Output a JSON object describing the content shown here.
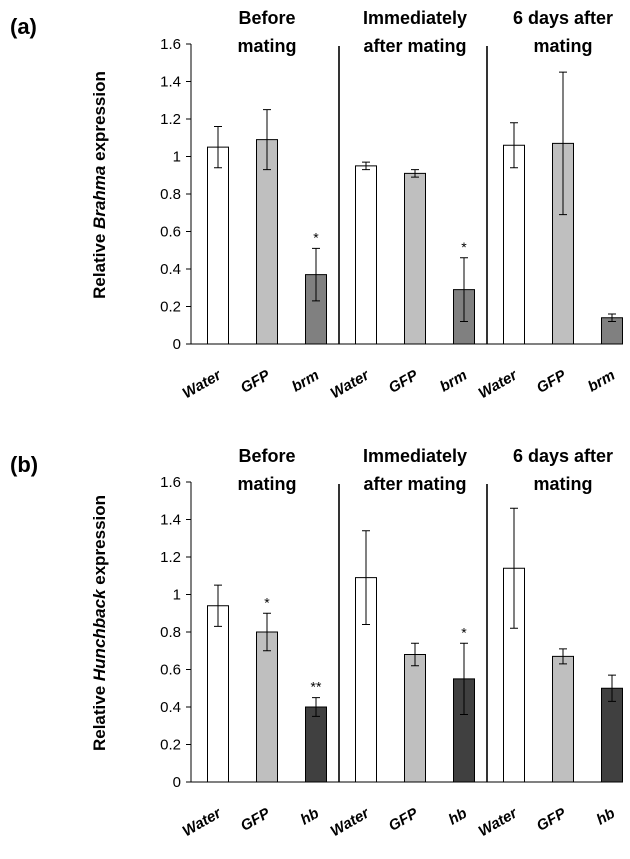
{
  "chart_data": [
    {
      "type": "bar",
      "panel_label": "(a)",
      "ylabel_pre": "Relative ",
      "ylabel_em": "Brahma",
      "ylabel_post": " expression",
      "ylim": [
        0,
        1.6
      ],
      "yticks": [
        "0",
        "0.2",
        "0.4",
        "0.6",
        "0.8",
        "1",
        "1.2",
        "1.4",
        "1.6"
      ],
      "groups": [
        {
          "label_lines": [
            "Before",
            "mating"
          ],
          "categories": [
            "Water",
            "GFP",
            "brm"
          ],
          "values": [
            1.05,
            1.09,
            0.37
          ],
          "errors": [
            0.11,
            0.16,
            0.14
          ],
          "stars": [
            "",
            "",
            "*"
          ]
        },
        {
          "label_lines": [
            "Immediately",
            "after mating"
          ],
          "categories": [
            "Water",
            "GFP",
            "brm"
          ],
          "values": [
            0.95,
            0.91,
            0.29
          ],
          "errors": [
            0.02,
            0.02,
            0.17
          ],
          "stars": [
            "",
            "",
            "*"
          ]
        },
        {
          "label_lines": [
            "6 days after",
            "mating"
          ],
          "categories": [
            "Water",
            "GFP",
            "brm"
          ],
          "values": [
            1.06,
            1.07,
            0.14
          ],
          "errors": [
            0.12,
            0.38,
            0.02
          ],
          "stars": [
            "",
            "",
            ""
          ]
        }
      ],
      "colors": [
        "#ffffff",
        "#bfbfbf",
        "#808080"
      ]
    },
    {
      "type": "bar",
      "panel_label": "(b)",
      "ylabel_pre": "Relative ",
      "ylabel_em": "Hunchback",
      "ylabel_post": " expression",
      "ylim": [
        0,
        1.6
      ],
      "yticks": [
        "0",
        "0.2",
        "0.4",
        "0.6",
        "0.8",
        "1",
        "1.2",
        "1.4",
        "1.6"
      ],
      "groups": [
        {
          "label_lines": [
            "Before",
            "mating"
          ],
          "categories": [
            "Water",
            "GFP",
            "hb"
          ],
          "values": [
            0.94,
            0.8,
            0.4
          ],
          "errors": [
            0.11,
            0.1,
            0.05
          ],
          "stars": [
            "",
            "*",
            "**"
          ]
        },
        {
          "label_lines": [
            "Immediately",
            "after mating"
          ],
          "categories": [
            "Water",
            "GFP",
            "hb"
          ],
          "values": [
            1.09,
            0.68,
            0.55
          ],
          "errors": [
            0.25,
            0.06,
            0.19
          ],
          "stars": [
            "",
            "",
            "*"
          ]
        },
        {
          "label_lines": [
            "6 days after",
            "mating"
          ],
          "categories": [
            "Water",
            "GFP",
            "hb"
          ],
          "values": [
            1.14,
            0.67,
            0.5
          ],
          "errors": [
            0.32,
            0.04,
            0.07
          ],
          "stars": [
            "",
            "",
            ""
          ]
        }
      ],
      "colors": [
        "#ffffff",
        "#bfbfbf",
        "#404040"
      ]
    }
  ]
}
